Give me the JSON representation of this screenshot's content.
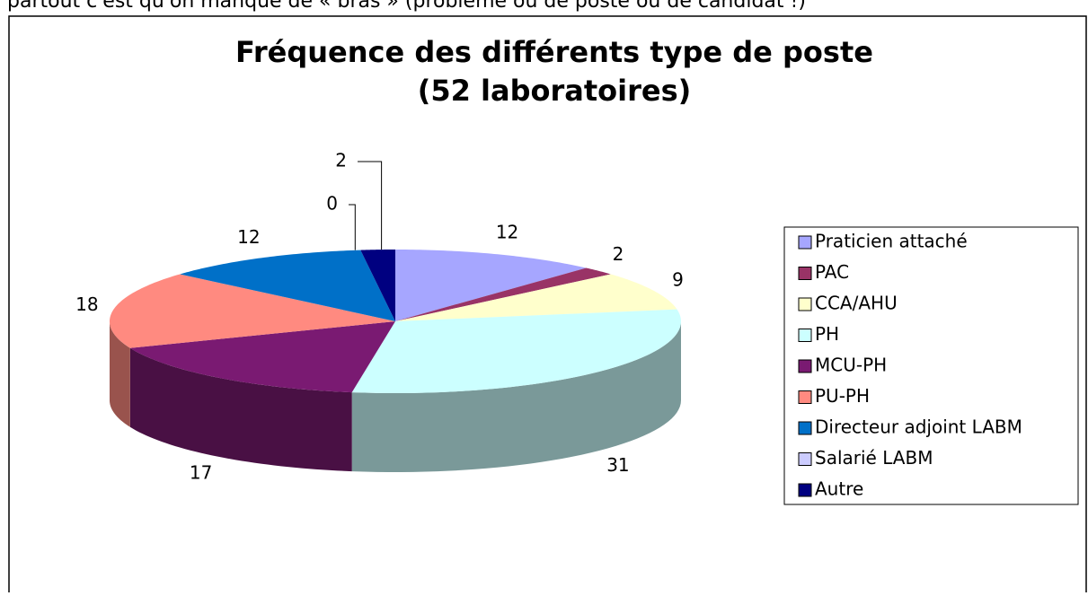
{
  "top_text": "partout c'est qu'on manque de « bras » (problème ou de poste ou de candidat !)",
  "chart_data": {
    "type": "pie3d",
    "title": [
      "Fréquence des différents type de poste",
      "(52 laboratoires)"
    ],
    "categories": [
      "Praticien attaché",
      "PAC",
      "CCA/AHU",
      "PH",
      "MCU-PH",
      "PU-PH",
      "Directeur adjoint LABM",
      "Salarié LABM",
      "Autre"
    ],
    "values": [
      12,
      2,
      9,
      31,
      17,
      18,
      12,
      0,
      2
    ],
    "colors": [
      "#a6a6ff",
      "#993366",
      "#ffffcc",
      "#ccffff",
      "#7a1a72",
      "#ff8a80",
      "#0070c8",
      "#ccccff",
      "#000080"
    ],
    "legend": "right"
  }
}
